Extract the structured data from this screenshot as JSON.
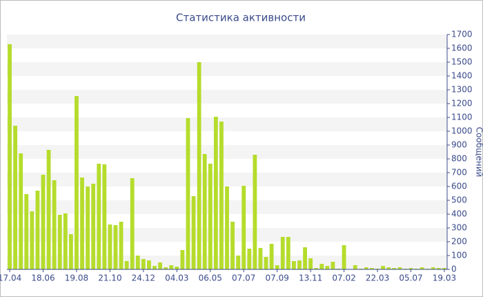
{
  "chart_data": {
    "type": "bar",
    "title": "Статистика активности",
    "y_label": "Сообщений",
    "categories": [
      "17.04",
      null,
      null,
      null,
      null,
      null,
      "18.06",
      null,
      null,
      null,
      null,
      null,
      "19.08",
      null,
      null,
      null,
      null,
      null,
      "21.10",
      null,
      null,
      null,
      null,
      null,
      "24.12",
      null,
      null,
      null,
      null,
      null,
      "04.03",
      null,
      null,
      null,
      null,
      null,
      "06.05",
      null,
      null,
      null,
      null,
      null,
      "07.07",
      null,
      null,
      null,
      null,
      null,
      "07.09",
      null,
      null,
      null,
      null,
      null,
      "13.11",
      null,
      null,
      null,
      null,
      null,
      "07.02",
      null,
      null,
      null,
      null,
      null,
      "22.03",
      null,
      null,
      null,
      null,
      null,
      "05.07",
      null,
      null,
      null,
      null,
      null,
      "19.03"
    ],
    "values": [
      1630,
      1040,
      840,
      545,
      420,
      570,
      685,
      865,
      645,
      395,
      405,
      255,
      1255,
      665,
      600,
      620,
      765,
      760,
      325,
      320,
      345,
      60,
      660,
      100,
      75,
      65,
      25,
      50,
      15,
      30,
      20,
      140,
      1095,
      530,
      1500,
      835,
      765,
      1105,
      1070,
      600,
      345,
      100,
      605,
      150,
      830,
      155,
      90,
      185,
      30,
      235,
      235,
      60,
      65,
      160,
      80,
      10,
      40,
      25,
      55,
      5,
      175,
      0,
      30,
      5,
      15,
      10,
      5,
      25,
      15,
      10,
      15,
      5,
      10,
      5,
      15,
      5,
      15,
      10,
      10
    ],
    "color": "#b5dc2c",
    "ylim": [
      0,
      1700
    ],
    "yticks": [
      0,
      100,
      200,
      300,
      400,
      500,
      600,
      700,
      800,
      900,
      1000,
      1100,
      1200,
      1300,
      1400,
      1500,
      1600,
      1700
    ],
    "grid": true
  }
}
